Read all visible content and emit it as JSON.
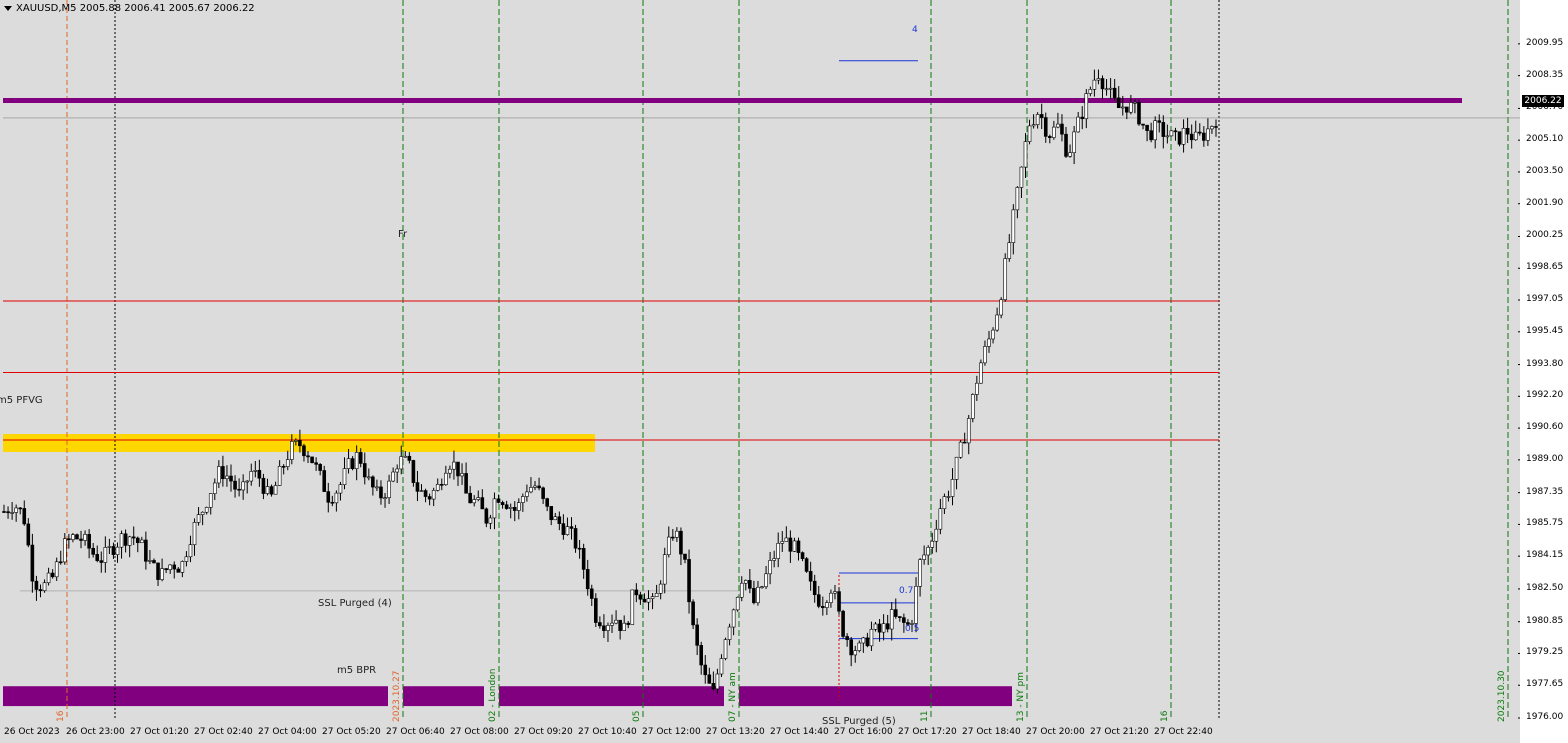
{
  "header": {
    "symbol_line": "XAUUSD,M5  2005.88 2006.41 2005.67 2006.22"
  },
  "colors": {
    "plot_bg": "#dcdcdc",
    "candle": "#000000",
    "purple": "#800080",
    "gold": "#ffd700",
    "red": "#e00000",
    "green": "#0a7a0a",
    "orange": "#e0642a",
    "blue": "#1a35d6"
  },
  "chart_data": {
    "type": "candlestick",
    "title": "XAUUSD,M5",
    "ylim": [
      1976.0,
      2010.9
    ],
    "y_ticks": [
      "2009.95",
      "2008.35",
      "2006.70",
      "2005.10",
      "2003.50",
      "2001.90",
      "2000.25",
      "1998.65",
      "1997.05",
      "1995.45",
      "1993.80",
      "1992.20",
      "1990.60",
      "1989.00",
      "1987.35",
      "1985.75",
      "1984.15",
      "1982.50",
      "1980.85",
      "1979.25",
      "1977.65",
      "1976.00"
    ],
    "x_tick_labels": [
      "26 Oct 2023",
      "26 Oct 23:00",
      "27 Oct 01:20",
      "27 Oct 02:40",
      "27 Oct 04:00",
      "27 Oct 05:20",
      "27 Oct 06:40",
      "27 Oct 08:00",
      "27 Oct 09:20",
      "27 Oct 10:40",
      "27 Oct 12:00",
      "27 Oct 13:20",
      "27 Oct 14:40",
      "27 Oct 16:00",
      "27 Oct 17:20",
      "27 Oct 18:40",
      "27 Oct 20:00",
      "27 Oct 21:20",
      "27 Oct 22:40"
    ],
    "last_price": "2006.22",
    "horizontal_levels": [
      {
        "kind": "purple-thick",
        "price": 2007.1
      },
      {
        "kind": "red",
        "price": 1997.0
      },
      {
        "kind": "red",
        "price": 1993.4
      },
      {
        "kind": "red",
        "price": 1990.0
      },
      {
        "kind": "gray",
        "price": 2006.22
      },
      {
        "kind": "gray",
        "price": 1982.4
      }
    ],
    "zones": [
      {
        "label": "m5 PFVG",
        "color": "gold",
        "price_top": 1990.3,
        "price_bottom": 1989.4
      },
      {
        "label": "m5 BPR",
        "color": "purple",
        "price_top": 1977.6,
        "price_bottom": 1976.6
      }
    ],
    "close_path": [
      1986.4,
      1986.8,
      1986.2,
      1982.9,
      1982.6,
      1983.1,
      1984.6,
      1985.1,
      1985.0,
      1984.3,
      1984.0,
      1984.6,
      1985.1,
      1985.2,
      1984.6,
      1983.6,
      1983.2,
      1983.8,
      1983.6,
      1985.3,
      1986.3,
      1987.5,
      1988.5,
      1988.0,
      1987.1,
      1988.4,
      1988.1,
      1986.9,
      1988.3,
      1989.5,
      1989.8,
      1989.3,
      1988.2,
      1987.1,
      1987.6,
      1988.7,
      1989.3,
      1987.9,
      1987.1,
      1987.6,
      1989.0,
      1988.8,
      1987.5,
      1987.1,
      1987.6,
      1989.0,
      1988.6,
      1987.1,
      1986.8,
      1986.0,
      1987.3,
      1986.9,
      1986.4,
      1987.6,
      1987.7,
      1986.5,
      1985.9,
      1985.6,
      1984.8,
      1983.3,
      1981.2,
      1980.8,
      1981.1,
      1980.4,
      1982.5,
      1982.2,
      1981.6,
      1983.9,
      1985.6,
      1984.0,
      1980.2,
      1978.1,
      1977.2,
      1979.8,
      1981.5,
      1983.4,
      1981.7,
      1982.7,
      1984.0,
      1985.0,
      1984.7,
      1983.7,
      1982.4,
      1981.8,
      1982.7,
      1980.6,
      1979.6,
      1979.4,
      1980.4,
      1980.3,
      1981.1,
      1980.8,
      1980.6,
      1983.9,
      1984.7,
      1986.6,
      1987.6,
      1989.3,
      1991.3,
      1993.7,
      1995.1,
      1996.9,
      1999.9,
      2002.8,
      2005.9,
      2006.6,
      2005.4,
      2005.8,
      2004.4,
      2005.9,
      2007.4,
      2008.6,
      2007.6,
      2006.7,
      2006.9,
      2006.5,
      2005.4,
      2005.7,
      2005.4,
      2005.1,
      2005.6,
      2005.1,
      2005.5,
      2006.2
    ]
  },
  "verticals": {
    "session_lines_x": [
      403,
      499,
      643,
      739,
      931,
      1027,
      1171
    ],
    "black_dotted_x": [
      115,
      1219
    ],
    "orange_x": 67,
    "far_right_green_x": 1508
  },
  "annotations": {
    "fr": "Fr",
    "pfvg": "m5 PFVG",
    "ssl_purged_4": "SSL Purged (4)",
    "bpr": "m5 BPR",
    "ssl_purged_5": "SSL Purged (5)",
    "fib_07": "0.7",
    "fib_05": "0.5",
    "top_marker": "4"
  },
  "vertical_labels": {
    "v16a": "16",
    "date_1027": "2023.10.27",
    "london": "02 - London",
    "v05": "05",
    "ny_am": "07 - NY am",
    "v11": "11",
    "ny_pm": "13 - NY pm",
    "v16b": "16",
    "date_1030": "2023.10.30"
  }
}
